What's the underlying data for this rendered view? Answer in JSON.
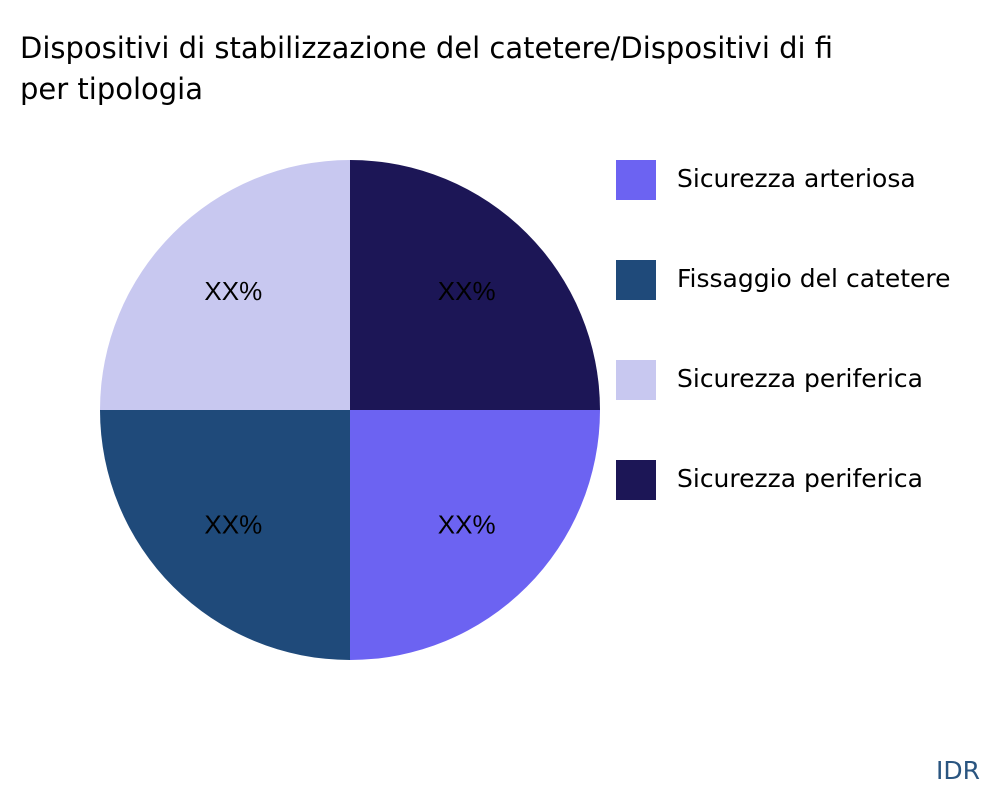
{
  "chart_data": {
    "type": "pie",
    "title": [
      "Dispositivi di stabilizzazione del catetere/Dispositivi di fi",
      "per tipologia"
    ],
    "categories": [
      "Sicurezza arteriosa",
      "Fissaggio del catetere",
      "Sicurezza periferica",
      "Sicurezza periferica"
    ],
    "values": [
      25,
      25,
      25,
      25
    ],
    "value_labels": [
      "XX%",
      "XX%",
      "XX%",
      "XX%"
    ],
    "colors": [
      "#6c63f2",
      "#1f4a7a",
      "#c8c8f0",
      "#1c1656"
    ],
    "legend": "right",
    "source": "IDR"
  }
}
